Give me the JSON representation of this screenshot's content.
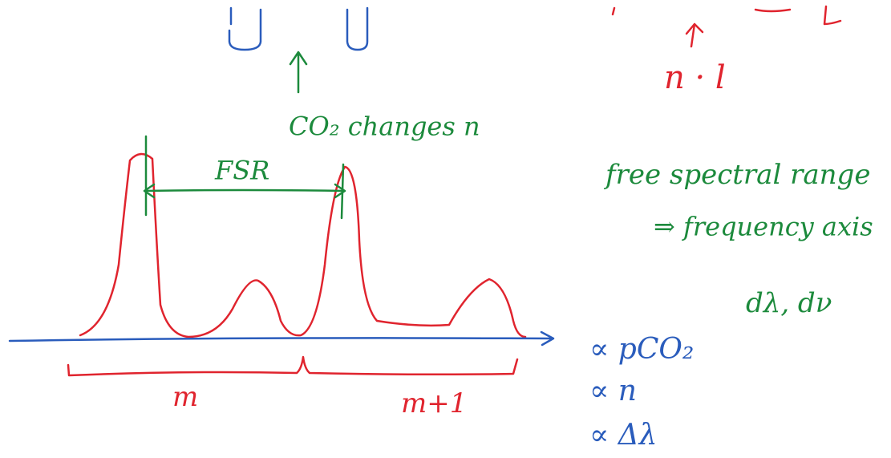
{
  "annotations": {
    "optical_path": "n · l",
    "co2_note": "CO₂ changes n",
    "fsr": "FSR",
    "fsr_full": "free spectral range",
    "frequency_axis": "⇒ frequency axis",
    "differentials": "dλ, dν",
    "prop_pco2": "∝ pCO₂",
    "prop_n": "∝ n",
    "prop_dlambda": "∝ Δλ",
    "order_m": "m",
    "order_m1": "m+1"
  }
}
